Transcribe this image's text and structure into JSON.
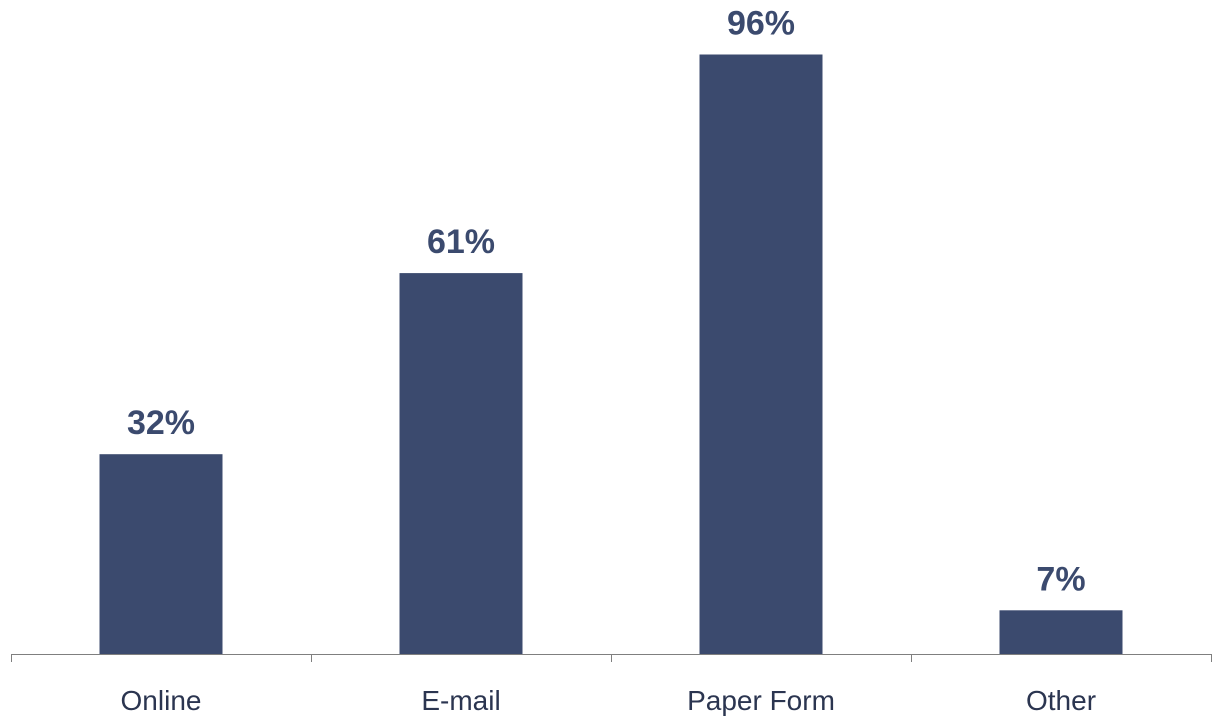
{
  "chart_data": {
    "type": "bar",
    "categories": [
      "Online",
      "E-mail",
      "Paper Form",
      "Other"
    ],
    "values": [
      32,
      61,
      96,
      7
    ],
    "value_labels": [
      "32%",
      "61%",
      "96%",
      "7%"
    ],
    "title": "",
    "xlabel": "",
    "ylabel": "",
    "ylim": [
      0,
      100
    ],
    "grid": false,
    "legend": "none",
    "bar_color": "#3b4a6e",
    "label_color": "#3b4a6e",
    "axis_color": "#7f7f7f",
    "tick_label_color": "#2b3550"
  }
}
